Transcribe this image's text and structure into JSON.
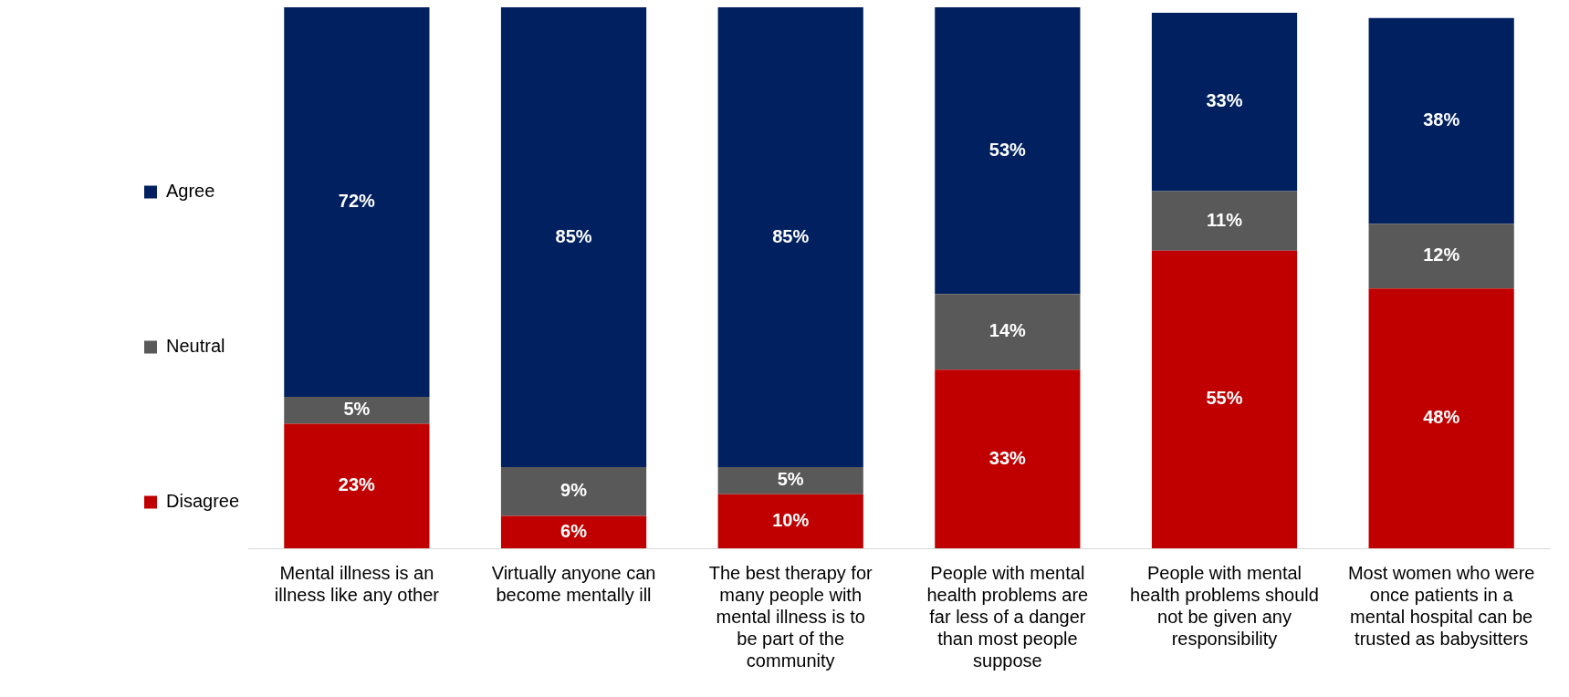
{
  "chart_data": {
    "type": "bar",
    "stacked": true,
    "categories": [
      "Mental illness is an illness like any other",
      "Virtually anyone can become mentally ill",
      "The best therapy for many people with mental illness is to be part of the community",
      "People with mental health problems are far less of a danger than most people suppose",
      "People with mental health problems should not be given any responsibility",
      "Most women who were once patients in a mental hospital can be trusted as babysitters"
    ],
    "series": [
      {
        "name": "Disagree",
        "color": "#c00000",
        "values": [
          23,
          6,
          10,
          33,
          55,
          48
        ],
        "value_labels": [
          "23%",
          "6%",
          "10%",
          "33%",
          "55%",
          "48%"
        ]
      },
      {
        "name": "Neutral",
        "color": "#595959",
        "values": [
          5,
          9,
          5,
          14,
          11,
          12
        ],
        "value_labels": [
          "5%",
          "9%",
          "5%",
          "14%",
          "11%",
          "12%"
        ]
      },
      {
        "name": "Agree",
        "color": "#002060",
        "values": [
          72,
          85,
          85,
          53,
          33,
          38
        ],
        "value_labels": [
          "72%",
          "85%",
          "85%",
          "53%",
          "33%",
          "38%"
        ]
      }
    ],
    "legend": "left",
    "grid": false,
    "tick_labels": "x"
  }
}
